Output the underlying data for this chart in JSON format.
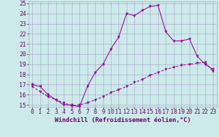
{
  "xlabel": "Windchill (Refroidissement éolien,°C)",
  "x_ticks": [
    0,
    1,
    2,
    3,
    4,
    5,
    6,
    7,
    8,
    9,
    10,
    11,
    12,
    13,
    14,
    15,
    16,
    17,
    18,
    19,
    20,
    21,
    22,
    23
  ],
  "ylim": [
    15,
    25
  ],
  "xlim": [
    -0.5,
    23.5
  ],
  "y_ticks": [
    15,
    16,
    17,
    18,
    19,
    20,
    21,
    22,
    23,
    24,
    25
  ],
  "line1_x": [
    0,
    1,
    2,
    3,
    4,
    5,
    6,
    7,
    8,
    9,
    10,
    11,
    12,
    13,
    14,
    15,
    16,
    17,
    18,
    19,
    20,
    21,
    22,
    23
  ],
  "line1_y": [
    17.0,
    16.8,
    16.0,
    15.5,
    15.0,
    15.0,
    14.8,
    16.8,
    18.2,
    19.0,
    20.5,
    21.7,
    24.0,
    23.8,
    24.3,
    24.7,
    24.8,
    22.2,
    21.3,
    21.3,
    21.5,
    19.8,
    19.0,
    18.5
  ],
  "line2_x": [
    0,
    1,
    2,
    3,
    4,
    5,
    6,
    7,
    8,
    9,
    10,
    11,
    12,
    13,
    14,
    15,
    16,
    17,
    18,
    19,
    20,
    21,
    22,
    23
  ],
  "line2_y": [
    16.8,
    16.3,
    15.8,
    15.5,
    15.2,
    14.9,
    15.0,
    15.2,
    15.5,
    15.8,
    16.2,
    16.5,
    16.8,
    17.2,
    17.5,
    17.9,
    18.2,
    18.5,
    18.7,
    18.9,
    19.0,
    19.1,
    19.2,
    18.3
  ],
  "line_color": "#990099",
  "bg_color": "#cceaea",
  "grid_color": "#aaaacc",
  "text_color": "#660066",
  "marker": "v",
  "tick_fontsize": 6.0,
  "label_fontsize": 6.5
}
